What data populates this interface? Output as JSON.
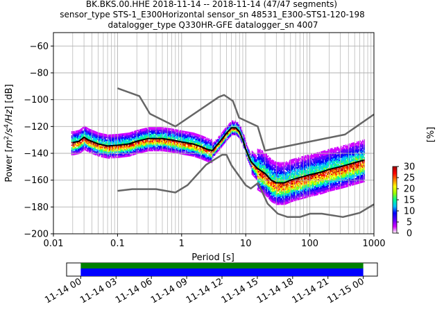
{
  "chart_data": [
    {
      "type": "heatmap",
      "title_lines": [
        "BK.BKS.00.HHE   2018-11-14 -- 2018-11-14  (47/47 segments)",
        "sensor_type STS-1_E300Horizontal sensor_sn 48531_E300-STS1-120-198",
        "datalogger_type Q330HR-GFE datalogger_sn 4007"
      ],
      "xlabel": "Period [s]",
      "ylabel_parts": [
        "Power [",
        "m",
        "2",
        "/s",
        "4",
        "/Hz",
        "] [dB]"
      ],
      "x_scale": "log",
      "xlim": [
        0.01,
        1000
      ],
      "ylim": [
        -200,
        -50
      ],
      "x_tick_labels": [
        "0.01",
        "0.1",
        "1",
        "10",
        "100",
        "1000"
      ],
      "x_tick_values": [
        0.01,
        0.1,
        1,
        10,
        100,
        1000
      ],
      "y_tick_values": [
        -200,
        -180,
        -160,
        -140,
        -120,
        -100,
        -80,
        -60
      ],
      "grid": true,
      "series": [
        {
          "role": "upper noise model",
          "color": "#666666",
          "x": [
            0.1,
            0.22,
            0.32,
            0.8,
            3.8,
            4.6,
            6.3,
            7.9,
            15.4,
            20,
            354,
            1000
          ],
          "y": [
            -91.5,
            -97.4,
            -110.5,
            -120,
            -98,
            -96.5,
            -101,
            -113.5,
            -120,
            -138,
            -126,
            -111
          ]
        },
        {
          "role": "lower noise model",
          "color": "#666666",
          "x": [
            0.1,
            0.17,
            0.4,
            0.8,
            1.24,
            2.4,
            4.3,
            5.0,
            6.0,
            10,
            12,
            15.6,
            21.9,
            31.6,
            45,
            70,
            101,
            154,
            328,
            600,
            1000
          ],
          "y": [
            -168,
            -166.7,
            -166.7,
            -169.2,
            -163.7,
            -148.6,
            -141.1,
            -141.1,
            -149,
            -163.8,
            -166.2,
            -162.1,
            -177.5,
            -185,
            -187.5,
            -187.5,
            -185,
            -185,
            -187.5,
            -184.4,
            -178
          ]
        },
        {
          "role": "mode / mean curve",
          "color": "#000000",
          "x": [
            0.02,
            0.025,
            0.03,
            0.035,
            0.05,
            0.07,
            0.1,
            0.15,
            0.2,
            0.3,
            0.5,
            0.7,
            1,
            1.5,
            2,
            2.5,
            3,
            4,
            5,
            6,
            7,
            8,
            9,
            10,
            12,
            15,
            20,
            25,
            30,
            40,
            50,
            70,
            100,
            150,
            200,
            300,
            500,
            700
          ],
          "y": [
            -132,
            -131,
            -128,
            -130,
            -133,
            -134.5,
            -134,
            -133,
            -131,
            -129,
            -129,
            -130,
            -131.5,
            -133,
            -135,
            -137,
            -138,
            -131,
            -125,
            -121,
            -121,
            -124,
            -130,
            -137,
            -146,
            -151,
            -155,
            -160,
            -162,
            -162,
            -160,
            -158,
            -156,
            -154,
            -152,
            -150,
            -147,
            -145
          ]
        }
      ]
    },
    {
      "type": "colorbar",
      "label": "[%]",
      "range": [
        0,
        30
      ],
      "tick_values": [
        0,
        5,
        10,
        15,
        20,
        25,
        30
      ],
      "colors": [
        "#ffffff",
        "#d000ff",
        "#5a00ff",
        "#0000ff",
        "#00bfff",
        "#00ff90",
        "#a0ff00",
        "#ffff00",
        "#ff8000",
        "#ff0000",
        "#a00000"
      ]
    },
    {
      "type": "timeline",
      "tick_labels": [
        "11-14 00",
        "11-14 03",
        "11-14 06",
        "11-14 09",
        "11-14 12",
        "11-14 15",
        "11-14 18",
        "11-14 21",
        "11-15 00"
      ],
      "coverage_hours": [
        0,
        24
      ],
      "span_hours": [
        -1.2,
        25.2
      ],
      "colors": [
        "#008000",
        "#0000ff"
      ]
    }
  ]
}
